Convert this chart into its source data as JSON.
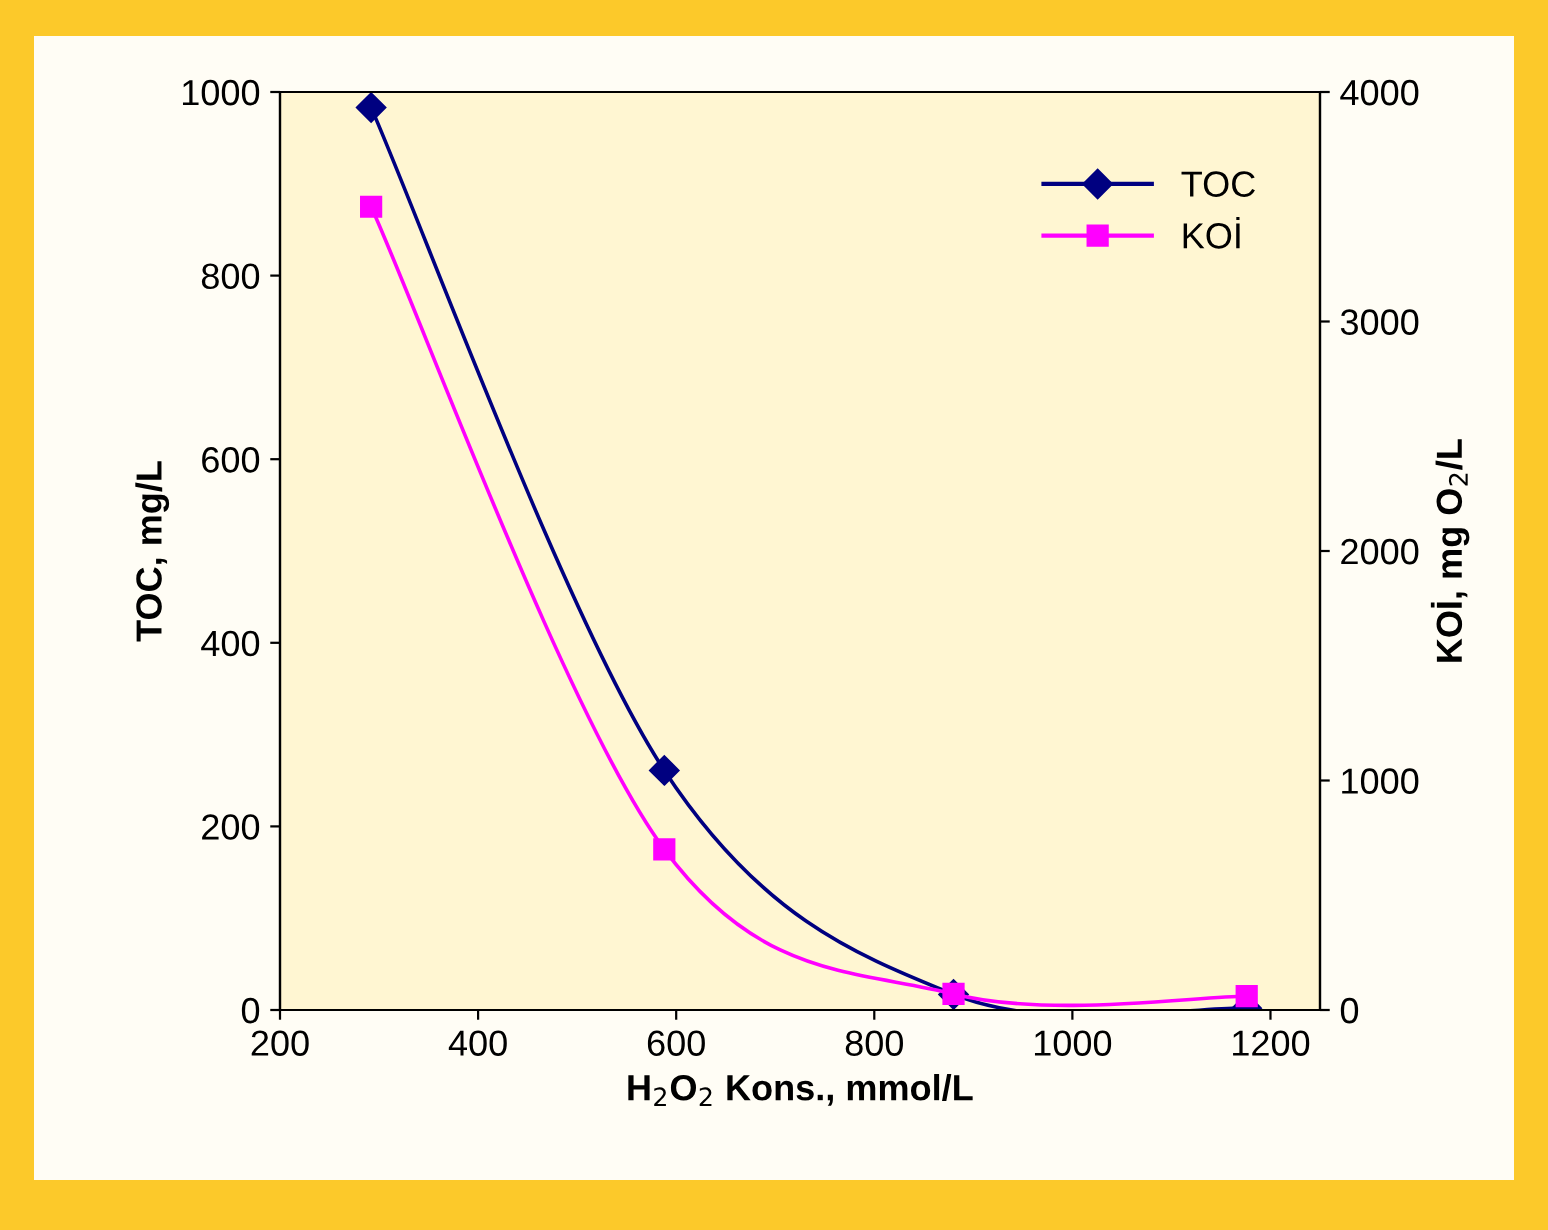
{
  "chart_data": {
    "type": "line",
    "xlabel": "H$_{2}$O$_{2}$ Kons., mmol/L",
    "ylabel": "TOC, mg/L",
    "y2label": "KOİ, mg O$_{2}$/L",
    "x": [
      292,
      588,
      880,
      1176
    ],
    "series": [
      {
        "name": "TOC",
        "color": "#000080",
        "marker": "diamond",
        "values": [
          983,
          261,
          17,
          2
        ]
      },
      {
        "name": "KOİ",
        "color": "#ff00ff",
        "marker": "square",
        "axis": "y2",
        "values": [
          3500,
          700,
          70,
          60
        ]
      }
    ],
    "xlim": [
      200,
      1250
    ],
    "xticks": [
      200,
      400,
      600,
      800,
      1000,
      1200
    ],
    "ylim": [
      0,
      1000
    ],
    "yticks": [
      0,
      200,
      400,
      600,
      800,
      1000
    ],
    "y2lim": [
      0,
      4000
    ],
    "y2ticks": [
      0,
      1000,
      2000,
      3000,
      4000
    ],
    "grid": false,
    "legend": "top right",
    "line_style": "solid"
  }
}
